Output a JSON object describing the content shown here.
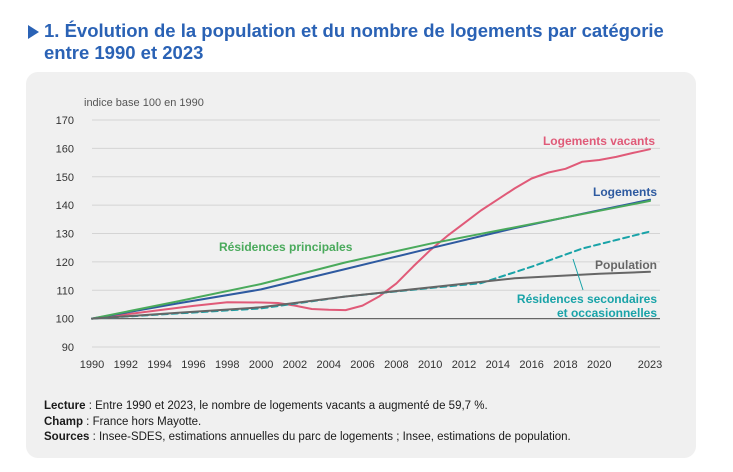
{
  "header": {
    "title": "1. Évolution de la population et du nombre de logements par catégorie entre 1990 et 2023"
  },
  "chart_data": {
    "type": "line",
    "ylabel": "indice base 100 en 1990",
    "ylim": [
      90,
      170
    ],
    "yticks": [
      90,
      100,
      110,
      120,
      130,
      140,
      150,
      160,
      170
    ],
    "xlim": [
      1990,
      2023
    ],
    "xticks": [
      1990,
      1992,
      1994,
      1996,
      1998,
      2000,
      2002,
      2004,
      2006,
      2008,
      2010,
      2012,
      2014,
      2016,
      2018,
      2020,
      2023
    ],
    "grid": "horizontal",
    "series": [
      {
        "name": "Logements vacants",
        "color": "#e05a78",
        "dash": false,
        "x": [
          1990,
          1992,
          1994,
          1996,
          1998,
          2000,
          2001,
          2002,
          2003,
          2004,
          2005,
          2006,
          2007,
          2008,
          2009,
          2010,
          2011,
          2012,
          2013,
          2014,
          2015,
          2016,
          2017,
          2018,
          2019,
          2020,
          2021,
          2022,
          2023
        ],
        "y": [
          100,
          101.5,
          103,
          104.5,
          105.8,
          105.7,
          105.5,
          104.6,
          103.4,
          103.1,
          103.0,
          104.6,
          107.9,
          112.4,
          118.4,
          124.1,
          129.1,
          133.6,
          138.1,
          142.0,
          145.9,
          149.4,
          151.5,
          152.8,
          155.3,
          155.9,
          157.0,
          158.4,
          159.7
        ]
      },
      {
        "name": "Logements",
        "color": "#2e5aa0",
        "dash": false,
        "x": [
          1990,
          1995,
          2000,
          2005,
          2010,
          2015,
          2020,
          2023
        ],
        "y": [
          100,
          105.3,
          110.3,
          117.5,
          124.8,
          131.9,
          138.2,
          141.9
        ]
      },
      {
        "name": "Résidences principales",
        "color": "#4aaa5c",
        "dash": false,
        "x": [
          1990,
          1995,
          2000,
          2005,
          2010,
          2015,
          2020,
          2023
        ],
        "y": [
          100,
          106,
          112.2,
          119.8,
          126.4,
          132.2,
          138,
          141.5
        ]
      },
      {
        "name": "Résidences secondaires et occasionnelles",
        "color": "#19a3a8",
        "dash": true,
        "x": [
          1990,
          1995,
          2000,
          2005,
          2010,
          2013,
          2016,
          2019,
          2021,
          2023
        ],
        "y": [
          100,
          101.8,
          103.6,
          107.8,
          110.8,
          112.5,
          118.3,
          124.7,
          127.7,
          130.7
        ]
      },
      {
        "name": "Population",
        "color": "#666666",
        "dash": false,
        "x": [
          1990,
          1995,
          2000,
          2005,
          2010,
          2015,
          2020,
          2023
        ],
        "y": [
          100,
          102,
          104,
          107.8,
          111,
          114.2,
          115.8,
          116.5
        ]
      }
    ],
    "labels": [
      {
        "text": "Logements vacants",
        "series": 0
      },
      {
        "text": "Logements",
        "series": 1
      },
      {
        "text": "Résidences principales",
        "series": 2
      },
      {
        "text": "Résidences secondaires",
        "series": 3
      },
      {
        "text": "et occasionnelles",
        "series": 3
      },
      {
        "text": "Population",
        "series": 4
      }
    ]
  },
  "notes": {
    "lecture_label": "Lecture",
    "lecture_text": " : Entre 1990 et 2023, le nombre de logements vacants a augmenté de 59,7 %.",
    "champ_label": "Champ",
    "champ_text": " : France hors Mayotte.",
    "sources_label": "Sources",
    "sources_text": " : Insee-SDES, estimations annuelles du parc de logements ; Insee, estimations de population."
  }
}
